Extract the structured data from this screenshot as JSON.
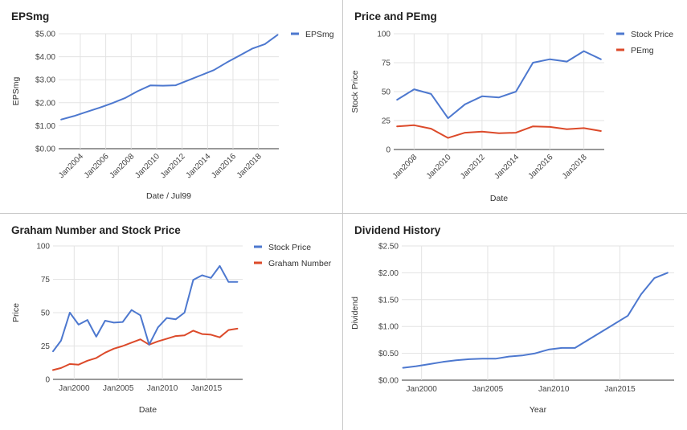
{
  "chart_data": [
    {
      "type": "line",
      "title": "EPSmg",
      "xlabel": "Date / Jul99",
      "ylabel": "EPSmg",
      "x_ticks": [
        "Jan2004",
        "Jan2006",
        "Jan2008",
        "Jan2010",
        "Jan2012",
        "Jan2014",
        "Jan2016",
        "Jan2018"
      ],
      "x_tick_years": [
        2004,
        2006,
        2008,
        2010,
        2012,
        2014,
        2016,
        2018
      ],
      "xlim": [
        2002.3,
        2019.6
      ],
      "y_ticks": [
        "$0.00",
        "$1.00",
        "$2.00",
        "$3.00",
        "$4.00",
        "$5.00"
      ],
      "ylim": [
        0,
        5
      ],
      "grid": true,
      "legend_position": "right",
      "x": [
        2002.5,
        2003.5,
        2004.5,
        2005.5,
        2006.5,
        2007.5,
        2008.5,
        2009.5,
        2010.5,
        2011.5,
        2012.5,
        2013.5,
        2014.5,
        2015.5,
        2016.5,
        2017.5,
        2018.5,
        2019.5
      ],
      "series": [
        {
          "name": "EPSmg",
          "color": "#4d78cf",
          "values": [
            1.27,
            1.42,
            1.6,
            1.78,
            1.98,
            2.2,
            2.5,
            2.75,
            2.74,
            2.76,
            2.98,
            3.2,
            3.42,
            3.75,
            4.05,
            4.35,
            4.55,
            4.95
          ]
        }
      ]
    },
    {
      "type": "line",
      "title": "Price and PEmg",
      "xlabel": "Date",
      "ylabel": "Stock Price",
      "x_ticks": [
        "Jan2008",
        "Jan2010",
        "Jan2012",
        "Jan2014",
        "Jan2016",
        "Jan2018"
      ],
      "x_tick_years": [
        2008,
        2010,
        2012,
        2014,
        2016,
        2018
      ],
      "xlim": [
        2006.8,
        2019.2
      ],
      "y_ticks": [
        "0",
        "25",
        "50",
        "75",
        "100"
      ],
      "ylim": [
        0,
        100
      ],
      "grid": true,
      "legend_position": "right",
      "x": [
        2007,
        2008,
        2009,
        2010,
        2011,
        2012,
        2013,
        2014,
        2015,
        2016,
        2017,
        2018,
        2019
      ],
      "series": [
        {
          "name": "Stock Price",
          "color": "#4d78cf",
          "values": [
            43,
            52,
            48,
            27,
            39,
            46,
            45,
            50,
            75,
            78,
            76,
            85,
            78
          ]
        },
        {
          "name": "PEmg",
          "color": "#dc4a2a",
          "values": [
            20,
            21,
            18,
            10,
            14.5,
            15.5,
            14,
            14.5,
            20,
            19.5,
            17.5,
            18.5,
            16
          ]
        }
      ]
    },
    {
      "type": "line",
      "title": "Graham Number and Stock Price",
      "xlabel": "Date",
      "ylabel": "Price",
      "x_ticks": [
        "Jan2000",
        "Jan2005",
        "Jan2010",
        "Jan2015"
      ],
      "x_tick_years": [
        2000,
        2005,
        2010,
        2015
      ],
      "xlim": [
        1997.6,
        2019.1
      ],
      "y_ticks": [
        "0",
        "25",
        "50",
        "75",
        "100"
      ],
      "ylim": [
        0,
        100
      ],
      "grid": true,
      "legend_position": "right",
      "x": [
        1997.6,
        1998.5,
        1999.5,
        2000.5,
        2001.5,
        2002.5,
        2003.5,
        2004.5,
        2005.5,
        2006.5,
        2007.5,
        2008.5,
        2009.5,
        2010.5,
        2011.5,
        2012.5,
        2013.5,
        2014.5,
        2015.5,
        2016.5,
        2017.5,
        2018.5
      ],
      "series": [
        {
          "name": "Stock Price",
          "color": "#4d78cf",
          "values": [
            21,
            29,
            50,
            41,
            44.5,
            32,
            44,
            42.5,
            43,
            52,
            48,
            26,
            39,
            46,
            45,
            50,
            74.5,
            78,
            76,
            85,
            73,
            73
          ]
        },
        {
          "name": "Graham Number",
          "color": "#dc4a2a",
          "values": [
            7,
            8.5,
            11.5,
            11,
            14,
            16,
            20,
            23,
            25,
            27.5,
            30,
            26,
            28.5,
            30.5,
            32.5,
            33,
            36.5,
            34,
            33.5,
            31.5,
            37,
            38
          ]
        }
      ]
    },
    {
      "type": "line",
      "title": "Dividend History",
      "xlabel": "Year",
      "ylabel": "Dividend",
      "x_ticks": [
        "Jan2000",
        "Jan2005",
        "Jan2010",
        "Jan2015"
      ],
      "x_tick_years": [
        2000,
        2005,
        2010,
        2015
      ],
      "xlim": [
        1998.5,
        2019.1
      ],
      "y_ticks": [
        "$0.00",
        "$0.50",
        "$1.00",
        "$1.50",
        "$2.00",
        "$2.50"
      ],
      "ylim": [
        0,
        2.5
      ],
      "grid": true,
      "x": [
        1998.6,
        1999.6,
        2000.6,
        2001.6,
        2002.6,
        2003.6,
        2004.6,
        2005.6,
        2006.6,
        2007.6,
        2008.6,
        2009.6,
        2010.6,
        2011.6,
        2012.6,
        2013.6,
        2014.6,
        2015.6,
        2016.6,
        2017.6,
        2018.6
      ],
      "series": [
        {
          "name": "",
          "color": "#4d78cf",
          "values": [
            0.23,
            0.26,
            0.3,
            0.34,
            0.37,
            0.39,
            0.4,
            0.4,
            0.44,
            0.46,
            0.5,
            0.57,
            0.6,
            0.6,
            0.75,
            0.9,
            1.05,
            1.2,
            1.6,
            1.9,
            2.0
          ]
        }
      ]
    }
  ]
}
